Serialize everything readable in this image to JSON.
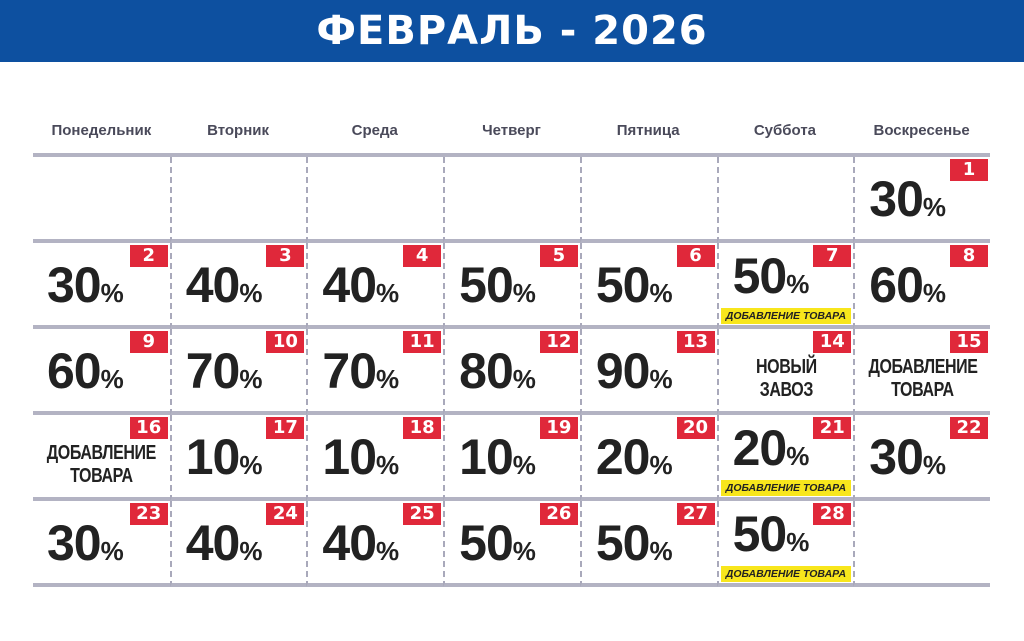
{
  "title": "ФЕВРАЛЬ - 2026",
  "colors": {
    "header": "#0d50a0",
    "badge": "#e0283a",
    "tag": "#f8e61c"
  },
  "weekdays": [
    "Понедельник",
    "Вторник",
    "Среда",
    "Четверг",
    "Пятница",
    "Суббота",
    "Воскресенье"
  ],
  "cells": [
    {},
    {},
    {},
    {},
    {},
    {},
    {
      "day": "1",
      "value": "30",
      "unit": "%"
    },
    {
      "day": "2",
      "value": "30",
      "unit": "%"
    },
    {
      "day": "3",
      "value": "40",
      "unit": "%"
    },
    {
      "day": "4",
      "value": "40",
      "unit": "%"
    },
    {
      "day": "5",
      "value": "50",
      "unit": "%"
    },
    {
      "day": "6",
      "value": "50",
      "unit": "%"
    },
    {
      "day": "7",
      "value": "50",
      "unit": "%",
      "tag": "ДОБАВЛЕНИЕ ТОВАРА"
    },
    {
      "day": "8",
      "value": "60",
      "unit": "%"
    },
    {
      "day": "9",
      "value": "60",
      "unit": "%"
    },
    {
      "day": "10",
      "value": "70",
      "unit": "%"
    },
    {
      "day": "11",
      "value": "70",
      "unit": "%"
    },
    {
      "day": "12",
      "value": "80",
      "unit": "%"
    },
    {
      "day": "13",
      "value": "90",
      "unit": "%"
    },
    {
      "day": "14",
      "text": [
        "НОВЫЙ",
        "ЗАВОЗ"
      ]
    },
    {
      "day": "15",
      "text": [
        "ДОБАВЛЕНИЕ",
        "ТОВАРА"
      ]
    },
    {
      "day": "16",
      "text": [
        "ДОБАВЛЕНИЕ",
        "ТОВАРА"
      ]
    },
    {
      "day": "17",
      "value": "10",
      "unit": "%"
    },
    {
      "day": "18",
      "value": "10",
      "unit": "%"
    },
    {
      "day": "19",
      "value": "10",
      "unit": "%"
    },
    {
      "day": "20",
      "value": "20",
      "unit": "%"
    },
    {
      "day": "21",
      "value": "20",
      "unit": "%",
      "tag": "ДОБАВЛЕНИЕ ТОВАРА"
    },
    {
      "day": "22",
      "value": "30",
      "unit": "%"
    },
    {
      "day": "23",
      "value": "30",
      "unit": "%"
    },
    {
      "day": "24",
      "value": "40",
      "unit": "%"
    },
    {
      "day": "25",
      "value": "40",
      "unit": "%"
    },
    {
      "day": "26",
      "value": "50",
      "unit": "%"
    },
    {
      "day": "27",
      "value": "50",
      "unit": "%"
    },
    {
      "day": "28",
      "value": "50",
      "unit": "%",
      "tag": "ДОБАВЛЕНИЕ ТОВАРА"
    },
    {}
  ]
}
